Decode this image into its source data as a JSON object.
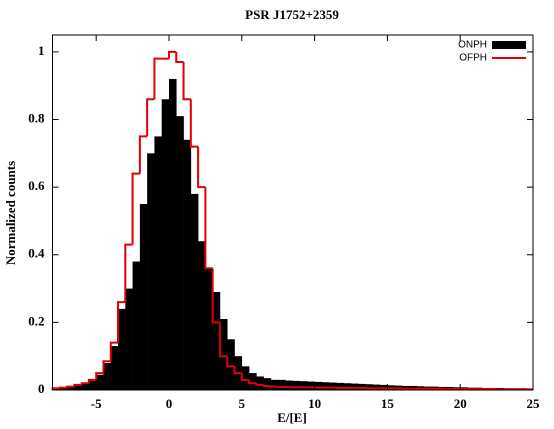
{
  "chart_data": {
    "type": "histogram",
    "title": "PSR J1752+2359",
    "xlabel": "E/[E]",
    "ylabel": "Normalized counts",
    "bins": [
      -8,
      -7.5,
      -7,
      -6.5,
      -6,
      -5.5,
      -5,
      -4.5,
      -4,
      -3.5,
      -3,
      -2.5,
      -2,
      -1.5,
      -1,
      -0.5,
      0,
      0.5,
      1,
      1.5,
      2,
      2.5,
      3,
      3.5,
      4,
      4.5,
      5,
      5.5,
      6,
      6.5,
      7,
      7.5,
      8,
      8.5,
      9,
      9.5,
      10,
      10.5,
      11,
      11.5,
      12,
      12.5,
      13,
      13.5,
      14,
      14.5,
      15,
      15.5,
      16,
      16.5,
      17,
      17.5,
      18,
      18.5,
      19,
      19.5,
      20,
      20.5,
      21,
      21.5,
      22,
      22.5,
      23,
      23.5,
      24,
      24.5,
      25
    ],
    "series": [
      {
        "name": "ONPH",
        "color": "#000000",
        "style": "filled",
        "values": [
          0.005,
          0.007,
          0.01,
          0.013,
          0.02,
          0.03,
          0.045,
          0.08,
          0.13,
          0.24,
          0.3,
          0.38,
          0.55,
          0.7,
          0.75,
          0.86,
          0.92,
          0.81,
          0.74,
          0.58,
          0.44,
          0.36,
          0.29,
          0.21,
          0.15,
          0.1,
          0.07,
          0.05,
          0.04,
          0.035,
          0.03,
          0.03,
          0.028,
          0.027,
          0.026,
          0.025,
          0.024,
          0.023,
          0.022,
          0.021,
          0.02,
          0.019,
          0.018,
          0.017,
          0.016,
          0.015,
          0.014,
          0.013,
          0.012,
          0.012,
          0.011,
          0.01,
          0.01,
          0.009,
          0.009,
          0.008,
          0.008,
          0.007,
          0.007,
          0.006,
          0.006,
          0.006,
          0.005,
          0.005,
          0.005,
          0.004
        ]
      },
      {
        "name": "OFPH",
        "color": "#e00000",
        "style": "step",
        "values": [
          0.005,
          0.007,
          0.01,
          0.015,
          0.02,
          0.03,
          0.05,
          0.085,
          0.14,
          0.26,
          0.43,
          0.64,
          0.75,
          0.86,
          0.98,
          0.98,
          1.0,
          0.97,
          0.86,
          0.72,
          0.6,
          0.36,
          0.2,
          0.1,
          0.07,
          0.05,
          0.03,
          0.02,
          0.015,
          0.012,
          0.01,
          0.009,
          0.009,
          0.008,
          0.008,
          0.008,
          0.007,
          0.007,
          0.007,
          0.006,
          0.006,
          0.006,
          0.006,
          0.005,
          0.005,
          0.005,
          0.005,
          0.005,
          0.004,
          0.004,
          0.004,
          0.004,
          0.004,
          0.004,
          0.003,
          0.003,
          0.003,
          0.003,
          0.003,
          0.003,
          0.003,
          0.002,
          0.002,
          0.002,
          0.002,
          0.002
        ]
      }
    ],
    "xlim": [
      -8,
      25
    ],
    "xticks": [
      -5,
      0,
      5,
      10,
      15,
      20,
      25
    ],
    "ylim": [
      0,
      1.05
    ],
    "yticks": [
      0,
      0.2,
      0.4,
      0.6,
      0.8,
      1
    ],
    "grid": false,
    "legend": "top-right"
  }
}
